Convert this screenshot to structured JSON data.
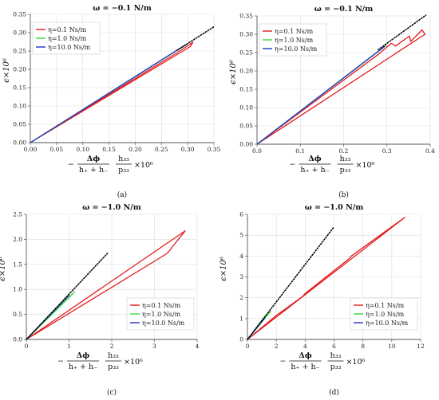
{
  "figure": {
    "ylabel": "ϵ×10⁶",
    "xlabel": {
      "minus": "−",
      "frac1_num": "Δϕ",
      "frac1_den": "h₊ + h₋",
      "frac2_num": "h₃₃",
      "frac2_den": "p₃₃",
      "tail": "×10⁶"
    },
    "legend_labels": [
      "η=0.1 Ns/m",
      "η=1.0 Ns/m",
      "η=10.0 Ns/m"
    ],
    "colors": {
      "eta01": "#e41a1c",
      "eta10": "#33dd33",
      "eta100": "#2233cc",
      "reference": "#000000",
      "grid": "#dddddd",
      "axis": "#555555"
    }
  },
  "chart_data": [
    {
      "type": "line",
      "panel": "a",
      "caption": "(a)",
      "title": "ω = −0.1 N/m",
      "legend_position": "top-left",
      "xlim": [
        0,
        0.35
      ],
      "ylim": [
        0,
        0.35
      ],
      "xticks": [
        "0.00",
        "0.05",
        "0.10",
        "0.15",
        "0.20",
        "0.25",
        "0.30",
        "0.35"
      ],
      "yticks": [
        "0.00",
        "0.05",
        "0.10",
        "0.15",
        "0.20",
        "0.25",
        "0.30",
        "0.35"
      ],
      "series": [
        {
          "name": "η=0.1 Ns/m",
          "x": [
            0,
            0.305,
            0.31,
            0.285,
            0
          ],
          "y": [
            0,
            0.262,
            0.274,
            0.25,
            0
          ]
        },
        {
          "name": "η=1.0 Ns/m",
          "x": [
            0,
            0.298,
            0
          ],
          "y": [
            0,
            0.268,
            0
          ]
        },
        {
          "name": "η=10.0 Ns/m",
          "x": [
            0,
            0.296,
            0
          ],
          "y": [
            0,
            0.267,
            0
          ]
        }
      ],
      "reference_line": {
        "x": [
          0.28,
          0.35
        ],
        "y": [
          0.252,
          0.316
        ]
      }
    },
    {
      "type": "line",
      "panel": "b",
      "caption": "(b)",
      "title": "ω = −0.1 N/m",
      "legend_position": "top-left",
      "xlim": [
        0,
        0.4
      ],
      "ylim": [
        0,
        0.35
      ],
      "xticks": [
        "0.0",
        "0.1",
        "0.2",
        "0.3",
        "0.4"
      ],
      "yticks": [
        "0.00",
        "0.05",
        "0.10",
        "0.15",
        "0.20",
        "0.25",
        "0.30",
        "0.35"
      ],
      "series": [
        {
          "name": "η=0.1 Ns/m",
          "x": [
            0,
            0.388,
            0.381,
            0.355,
            0.352,
            0.32,
            0.31,
            0.28,
            0
          ],
          "y": [
            0,
            0.3,
            0.312,
            0.28,
            0.295,
            0.268,
            0.275,
            0.245,
            0
          ]
        },
        {
          "name": "η=1.0 Ns/m",
          "x": [
            0,
            0.298,
            0.29,
            0
          ],
          "y": [
            0,
            0.27,
            0.262,
            0
          ]
        },
        {
          "name": "η=10.0 Ns/m",
          "x": [
            0,
            0.295,
            0
          ],
          "y": [
            0,
            0.267,
            0
          ]
        }
      ],
      "reference_line": {
        "x": [
          0.28,
          0.39
        ],
        "y": [
          0.258,
          0.352
        ]
      }
    },
    {
      "type": "line",
      "panel": "c",
      "caption": "(c)",
      "title": "ω = −1.0 N/m",
      "legend_position": "bottom-right",
      "xlim": [
        0,
        4
      ],
      "ylim": [
        0,
        2.5
      ],
      "xticks": [
        "0",
        "1",
        "2",
        "3",
        "4"
      ],
      "yticks": [
        "0.0",
        "0.5",
        "1.0",
        "1.5",
        "2.0",
        "2.5"
      ],
      "series": [
        {
          "name": "η=0.1 Ns/m",
          "x": [
            0,
            3.6,
            3.72,
            3.3,
            0
          ],
          "y": [
            0,
            2.1,
            2.17,
            1.72,
            0
          ]
        },
        {
          "name": "η=1.0 Ns/m",
          "x": [
            0,
            1.1,
            1.13,
            0.95,
            0
          ],
          "y": [
            0,
            0.92,
            0.95,
            0.8,
            0
          ]
        },
        {
          "name": "η=10.0 Ns/m",
          "x": [
            0,
            1.0,
            0
          ],
          "y": [
            0,
            0.88,
            0
          ]
        }
      ],
      "reference_line": {
        "x": [
          0,
          1.9
        ],
        "y": [
          0,
          1.72
        ]
      }
    },
    {
      "type": "line",
      "panel": "d",
      "caption": "(d)",
      "title": "ω = −1.0 N/m",
      "legend_position": "bottom-right",
      "xlim": [
        0,
        12
      ],
      "ylim": [
        0,
        6
      ],
      "xticks": [
        "0",
        "2",
        "4",
        "6",
        "8",
        "10",
        "12"
      ],
      "yticks": [
        "0",
        "1",
        "2",
        "3",
        "4",
        "5",
        "6"
      ],
      "series": [
        {
          "name": "η=0.1 Ns/m",
          "x": [
            0,
            10.9,
            10.8,
            7.2,
            7.0,
            4.0,
            3.8,
            2.0,
            0
          ],
          "y": [
            0,
            5.85,
            5.8,
            4.0,
            3.85,
            2.2,
            2.05,
            1.15,
            0
          ]
        },
        {
          "name": "η=1.0 Ns/m",
          "x": [
            0,
            1.6,
            1.2,
            0
          ],
          "y": [
            0,
            1.35,
            1.1,
            0
          ]
        },
        {
          "name": "η=10.0 Ns/m",
          "x": [
            0,
            1.2,
            0
          ],
          "y": [
            0,
            1.02,
            0
          ]
        }
      ],
      "reference_line": {
        "x": [
          0,
          6
        ],
        "y": [
          0,
          5.4
        ]
      }
    }
  ]
}
